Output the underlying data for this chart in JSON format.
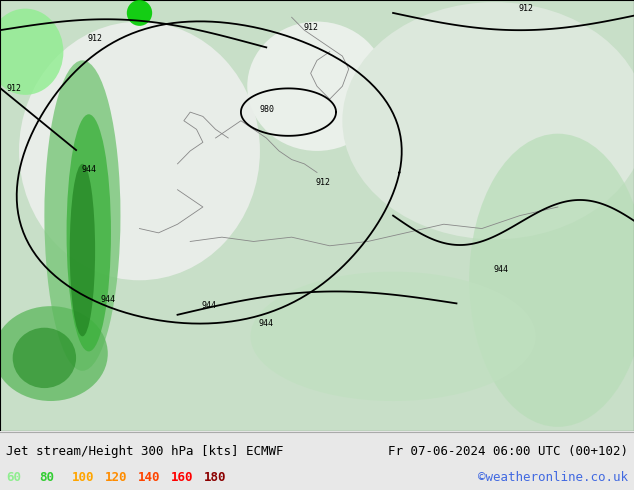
{
  "title_left": "Jet stream/Height 300 hPa [kts] ECMWF",
  "title_right": "Fr 07-06-2024 06:00 UTC (00+102)",
  "copyright": "©weatheronline.co.uk",
  "legend_values": [
    60,
    80,
    100,
    120,
    140,
    160,
    180
  ],
  "legend_colors": [
    "#90ee90",
    "#32cd32",
    "#ffa500",
    "#ff8c00",
    "#ff4500",
    "#ff0000",
    "#8b0000"
  ],
  "background_color": "#e8e8e8",
  "map_bg_color": "#d0e8d0",
  "contour_color": "#000000",
  "contour_label_color": "#000000",
  "bottom_bar_color": "#f0f0f0",
  "text_color": "#000000",
  "font_size_title": 9,
  "font_size_legend": 9,
  "font_size_copyright": 9
}
